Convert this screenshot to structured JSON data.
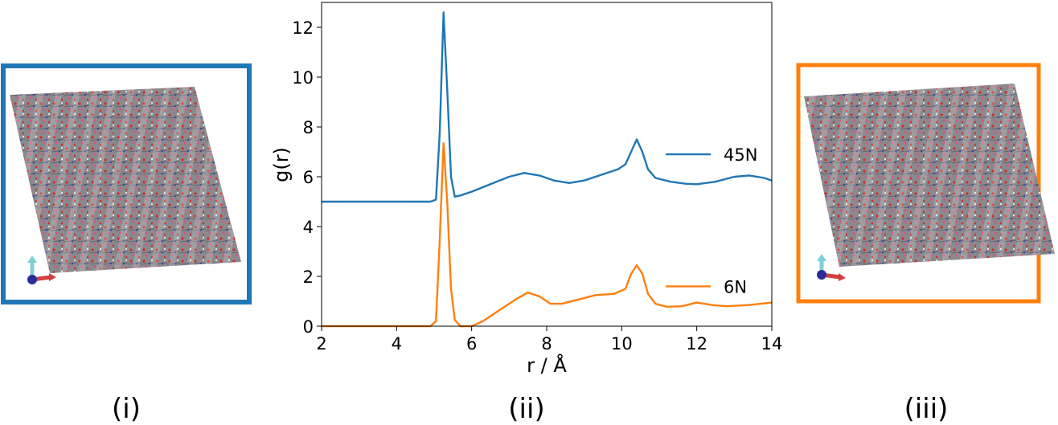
{
  "panels": {
    "left": {
      "label": "(i)",
      "frame_color": "#1f77b4",
      "image": "molecular-crystal-structure"
    },
    "right": {
      "label": "(iii)",
      "frame_color": "#ff7f0e",
      "image": "molecular-crystal-structure"
    },
    "middle": {
      "label": "(ii)"
    }
  },
  "chart_data": {
    "type": "line",
    "xlabel": "r / Å",
    "ylabel": "g(r)",
    "xlim": [
      2,
      14
    ],
    "ylim": [
      0,
      13
    ],
    "xticks": [
      "2",
      "4",
      "6",
      "8",
      "10",
      "12",
      "14"
    ],
    "yticks": [
      "0",
      "2",
      "4",
      "6",
      "8",
      "10",
      "12"
    ],
    "grid": false,
    "legend_placement": "right",
    "series": [
      {
        "name": "45N",
        "color": "#1f77b4",
        "points": [
          [
            2.0,
            5.0
          ],
          [
            4.9,
            5.0
          ],
          [
            5.05,
            5.08
          ],
          [
            5.15,
            7.8
          ],
          [
            5.25,
            12.6
          ],
          [
            5.35,
            9.5
          ],
          [
            5.45,
            6.0
          ],
          [
            5.55,
            5.2
          ],
          [
            5.7,
            5.25
          ],
          [
            6.0,
            5.4
          ],
          [
            6.5,
            5.7
          ],
          [
            7.0,
            6.0
          ],
          [
            7.4,
            6.15
          ],
          [
            7.8,
            6.05
          ],
          [
            8.2,
            5.85
          ],
          [
            8.6,
            5.75
          ],
          [
            9.0,
            5.85
          ],
          [
            9.5,
            6.1
          ],
          [
            9.9,
            6.3
          ],
          [
            10.1,
            6.5
          ],
          [
            10.25,
            7.0
          ],
          [
            10.4,
            7.5
          ],
          [
            10.55,
            7.0
          ],
          [
            10.7,
            6.3
          ],
          [
            10.9,
            5.95
          ],
          [
            11.3,
            5.8
          ],
          [
            11.7,
            5.72
          ],
          [
            12.0,
            5.7
          ],
          [
            12.5,
            5.8
          ],
          [
            13.0,
            6.0
          ],
          [
            13.4,
            6.05
          ],
          [
            13.8,
            5.95
          ],
          [
            14.0,
            5.85
          ]
        ]
      },
      {
        "name": "6N",
        "color": "#ff7f0e",
        "points": [
          [
            2.0,
            0.0
          ],
          [
            4.9,
            0.0
          ],
          [
            5.05,
            0.2
          ],
          [
            5.15,
            3.5
          ],
          [
            5.25,
            7.35
          ],
          [
            5.35,
            5.0
          ],
          [
            5.45,
            1.5
          ],
          [
            5.55,
            0.25
          ],
          [
            5.7,
            0.0
          ],
          [
            6.0,
            0.0
          ],
          [
            6.3,
            0.2
          ],
          [
            6.8,
            0.7
          ],
          [
            7.2,
            1.1
          ],
          [
            7.5,
            1.35
          ],
          [
            7.8,
            1.2
          ],
          [
            8.1,
            0.9
          ],
          [
            8.4,
            0.9
          ],
          [
            8.8,
            1.05
          ],
          [
            9.3,
            1.25
          ],
          [
            9.8,
            1.3
          ],
          [
            10.1,
            1.5
          ],
          [
            10.25,
            2.1
          ],
          [
            10.4,
            2.45
          ],
          [
            10.55,
            2.1
          ],
          [
            10.7,
            1.3
          ],
          [
            10.9,
            0.9
          ],
          [
            11.2,
            0.78
          ],
          [
            11.6,
            0.8
          ],
          [
            12.0,
            0.95
          ],
          [
            12.4,
            0.85
          ],
          [
            12.8,
            0.8
          ],
          [
            13.4,
            0.85
          ],
          [
            14.0,
            0.95
          ]
        ]
      }
    ]
  }
}
